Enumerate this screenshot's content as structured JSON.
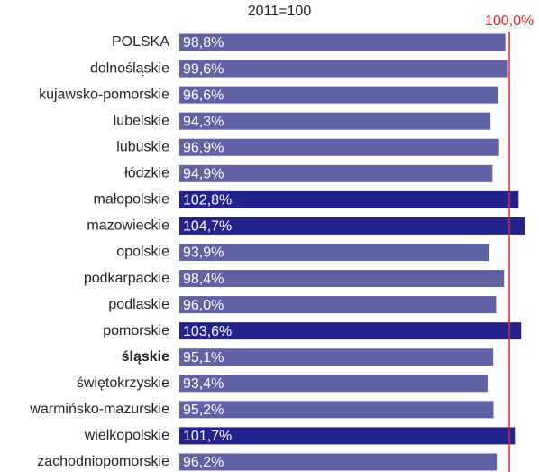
{
  "chart_data": {
    "type": "barh",
    "subtitle": "2011=100",
    "categories": [
      "POLSKA",
      "dolnośląskie",
      "kujawsko-pomorskie",
      "lubelskie",
      "lubuskie",
      "łódzkie",
      "małopolskie",
      "mazowieckie",
      "opolskie",
      "podkarpackie",
      "podlaskie",
      "pomorskie",
      "śląskie",
      "świętokrzyskie",
      "warmińsko-mazurskie",
      "wielkopolskie",
      "zachodniopomorskie"
    ],
    "values": [
      98.8,
      99.6,
      96.6,
      94.3,
      96.9,
      94.9,
      102.8,
      104.7,
      93.9,
      98.4,
      96.0,
      103.6,
      95.1,
      93.4,
      95.2,
      101.7,
      96.2
    ],
    "value_labels": [
      "98,8%",
      "99,6%",
      "96,6%",
      "94,3%",
      "96,9%",
      "94,9%",
      "102,8%",
      "104,7%",
      "93,9%",
      "98,4%",
      "96,0%",
      "103,6%",
      "95,1%",
      "93,4%",
      "95,2%",
      "101,7%",
      "96,2%"
    ],
    "colors": [
      "#6062a6",
      "#6062a6",
      "#6062a6",
      "#6062a6",
      "#6062a6",
      "#6062a6",
      "#23238e",
      "#23238e",
      "#6062a6",
      "#6062a6",
      "#6062a6",
      "#23238e",
      "#6062a6",
      "#6062a6",
      "#6062a6",
      "#23238e",
      "#6062a6"
    ],
    "bold_category_index": 12,
    "xlim": [
      0,
      109
    ],
    "reference_line": {
      "value": 100,
      "label": "100,0%",
      "color": "#e0282e"
    }
  }
}
